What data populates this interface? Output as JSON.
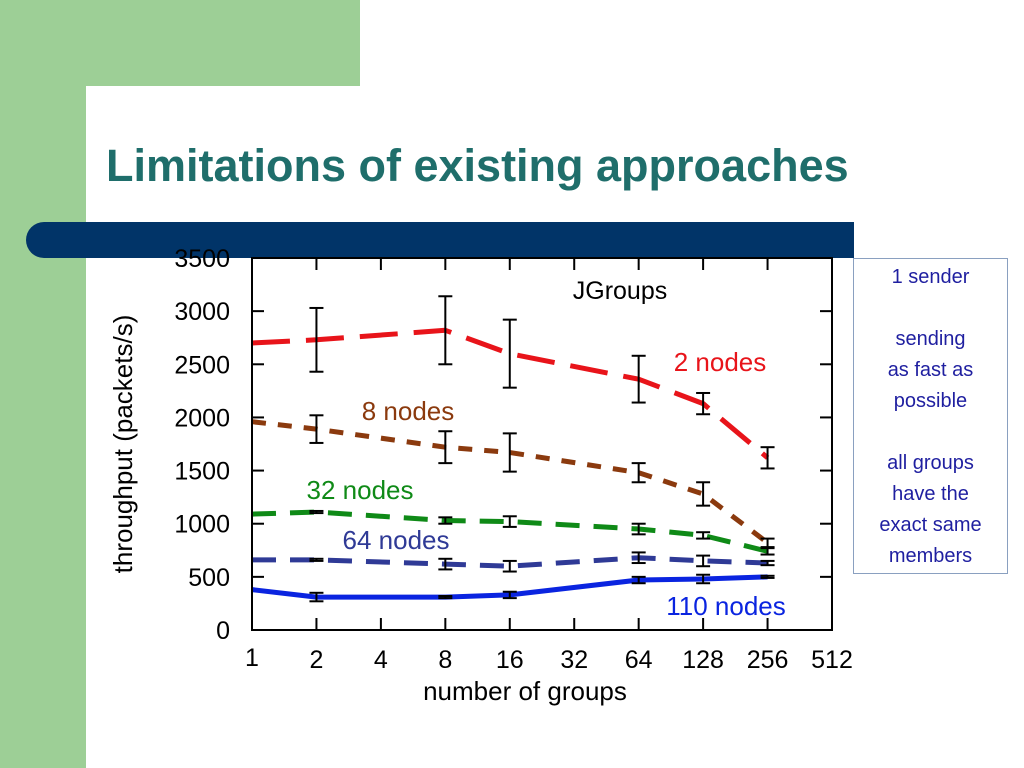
{
  "slide": {
    "title": "Limitations of existing approaches",
    "colors": {
      "sidebar": "#9dcf96",
      "title": "#1f6e6b",
      "bar": "#013468",
      "note_text": "#1f1fa0"
    }
  },
  "note": {
    "lines": [
      "1 sender",
      "",
      "sending",
      "as fast as",
      "possible",
      "",
      "all groups",
      "have the",
      "exact same",
      "members"
    ]
  },
  "chart_data": {
    "type": "line",
    "title": "JGroups",
    "xlabel": "number of groups",
    "ylabel": "throughput (packets/s)",
    "x_scale": "log2",
    "x_ticks": [
      "1",
      "2",
      "4",
      "8",
      "16",
      "32",
      "64",
      "128",
      "256",
      "512"
    ],
    "y_ticks": [
      "0",
      "500",
      "1000",
      "1500",
      "2000",
      "2500",
      "3000",
      "3500"
    ],
    "ylim": [
      0,
      3500
    ],
    "series": [
      {
        "name": "2 nodes",
        "color": "#e8141a",
        "dash": "long",
        "x": [
          1,
          2,
          8,
          16,
          64,
          128,
          256
        ],
        "y": [
          2700,
          2730,
          2820,
          2600,
          2360,
          2130,
          1620
        ],
        "err": [
          0,
          300,
          320,
          320,
          220,
          100,
          100
        ]
      },
      {
        "name": "8 nodes",
        "color": "#8b3a0e",
        "dash": "short",
        "x": [
          1,
          2,
          8,
          16,
          64,
          128,
          256
        ],
        "y": [
          1960,
          1890,
          1720,
          1670,
          1480,
          1280,
          820
        ],
        "err": [
          0,
          130,
          150,
          180,
          90,
          110,
          40
        ]
      },
      {
        "name": "32 nodes",
        "color": "#0f8a17",
        "dash": "medium",
        "x": [
          1,
          2,
          8,
          16,
          64,
          128,
          256
        ],
        "y": [
          1090,
          1110,
          1030,
          1020,
          950,
          890,
          740
        ],
        "err": [
          0,
          10,
          30,
          50,
          50,
          30,
          30
        ]
      },
      {
        "name": "64 nodes",
        "color": "#2f3a96",
        "dash": "medium",
        "x": [
          1,
          2,
          8,
          16,
          64,
          128,
          256
        ],
        "y": [
          660,
          660,
          620,
          600,
          680,
          650,
          630
        ],
        "err": [
          0,
          10,
          50,
          50,
          50,
          50,
          20
        ]
      },
      {
        "name": "110 nodes",
        "color": "#0a24e0",
        "dash": "solid",
        "x": [
          1,
          2,
          8,
          16,
          64,
          128,
          256
        ],
        "y": [
          380,
          310,
          310,
          330,
          470,
          480,
          500
        ],
        "err": [
          0,
          40,
          10,
          30,
          30,
          40,
          10
        ]
      }
    ]
  }
}
